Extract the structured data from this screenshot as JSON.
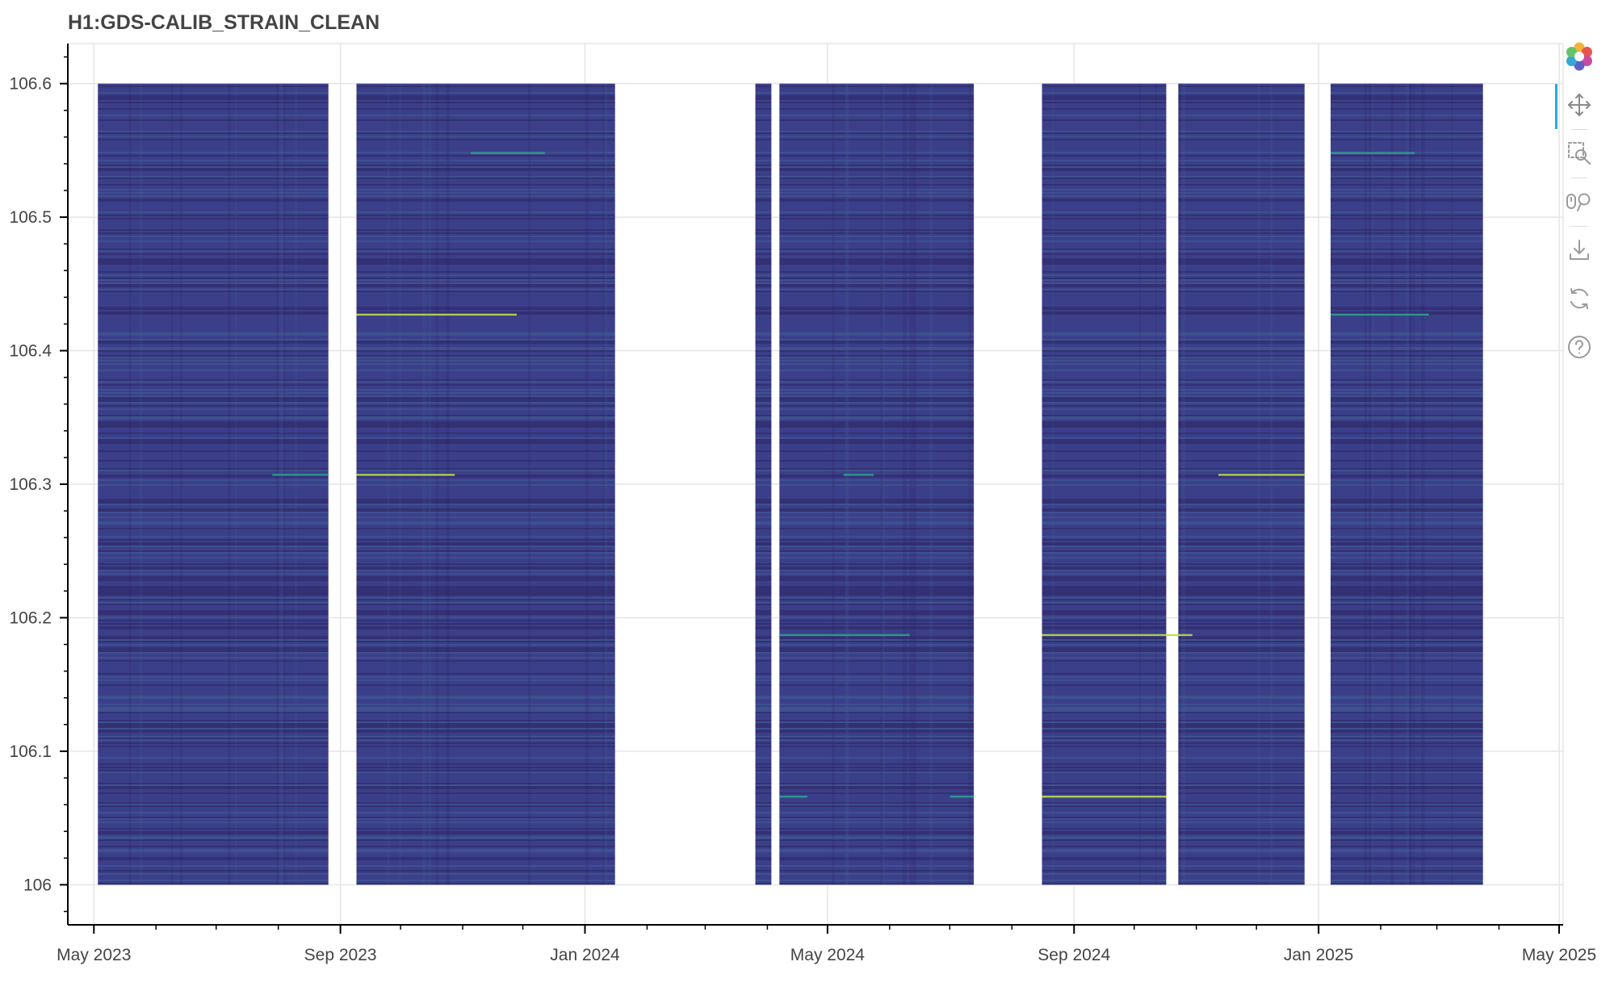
{
  "title": "H1:GDS-CALIB_STRAIN_CLEAN",
  "colors": {
    "background_band": "#3b3f8a",
    "dark_stripe": "#2c2462",
    "light_stripe": "#3f5c92",
    "line_teal": "#2fa08c",
    "line_yellow": "#b9dd4a",
    "grid": "#e5e5e5",
    "axis": "#000000",
    "tool_active": "#26aae1"
  },
  "toolbar": {
    "tools": [
      {
        "name": "bokeh-logo-icon",
        "label": "Bokeh"
      },
      {
        "name": "pan-icon",
        "label": "Pan"
      },
      {
        "name": "box-zoom-icon",
        "label": "Box Zoom"
      },
      {
        "name": "wheel-zoom-icon",
        "label": "Wheel Zoom"
      },
      {
        "name": "save-icon",
        "label": "Save"
      },
      {
        "name": "reset-icon",
        "label": "Reset"
      },
      {
        "name": "help-icon",
        "label": "Help"
      }
    ]
  },
  "chart_data": {
    "type": "heatmap",
    "title": "H1:GDS-CALIB_STRAIN_CLEAN",
    "xlabel": "",
    "ylabel": "",
    "x_type": "datetime",
    "xlim": [
      "2023-04-18",
      "2025-05-03"
    ],
    "ylim": [
      105.97,
      106.63
    ],
    "x_ticks": [
      "2023-05-01",
      "2023-09-01",
      "2024-01-01",
      "2024-05-01",
      "2024-09-01",
      "2025-01-01",
      "2025-05-01"
    ],
    "x_tick_labels": [
      "May 2023",
      "Sep 2023",
      "Jan 2024",
      "May 2024",
      "Sep 2024",
      "Jan 2025",
      "May 2025"
    ],
    "y_ticks": [
      106,
      106.1,
      106.2,
      106.3,
      106.4,
      106.5,
      106.6
    ],
    "y_tick_labels": [
      "106",
      "106.1",
      "106.2",
      "106.3",
      "106.4",
      "106.5",
      "106.6"
    ],
    "y_range_data": [
      106.0,
      106.6
    ],
    "grid": true,
    "segments": [
      {
        "start": "2023-05-03",
        "end": "2023-08-26"
      },
      {
        "start": "2023-09-09",
        "end": "2024-01-16"
      },
      {
        "start": "2024-03-26",
        "end": "2024-04-03"
      },
      {
        "start": "2024-04-07",
        "end": "2024-07-13"
      },
      {
        "start": "2024-08-16",
        "end": "2024-10-17"
      },
      {
        "start": "2024-10-23",
        "end": "2024-12-25"
      },
      {
        "start": "2025-01-07",
        "end": "2025-03-24"
      }
    ],
    "lines": [
      {
        "y": 106.548,
        "start": "2023-11-05",
        "end": "2023-12-12",
        "level": "teal"
      },
      {
        "y": 106.548,
        "start": "2025-01-07",
        "end": "2025-02-18",
        "level": "teal"
      },
      {
        "y": 106.427,
        "start": "2023-09-09",
        "end": "2023-11-28",
        "level": "yellow"
      },
      {
        "y": 106.427,
        "start": "2025-01-07",
        "end": "2025-02-25",
        "level": "teal"
      },
      {
        "y": 106.307,
        "start": "2023-07-29",
        "end": "2023-08-26",
        "level": "teal"
      },
      {
        "y": 106.307,
        "start": "2023-09-09",
        "end": "2023-10-28",
        "level": "yellow"
      },
      {
        "y": 106.307,
        "start": "2024-05-09",
        "end": "2024-05-24",
        "level": "teal"
      },
      {
        "y": 106.307,
        "start": "2024-11-12",
        "end": "2024-12-25",
        "level": "yellow"
      },
      {
        "y": 106.187,
        "start": "2024-04-07",
        "end": "2024-06-11",
        "level": "teal"
      },
      {
        "y": 106.187,
        "start": "2024-08-16",
        "end": "2024-10-30",
        "level": "yellow"
      },
      {
        "y": 106.066,
        "start": "2024-04-07",
        "end": "2024-04-21",
        "level": "teal"
      },
      {
        "y": 106.066,
        "start": "2024-07-01",
        "end": "2024-07-13",
        "level": "teal"
      },
      {
        "y": 106.066,
        "start": "2024-08-16",
        "end": "2024-10-17",
        "level": "yellow"
      }
    ]
  }
}
